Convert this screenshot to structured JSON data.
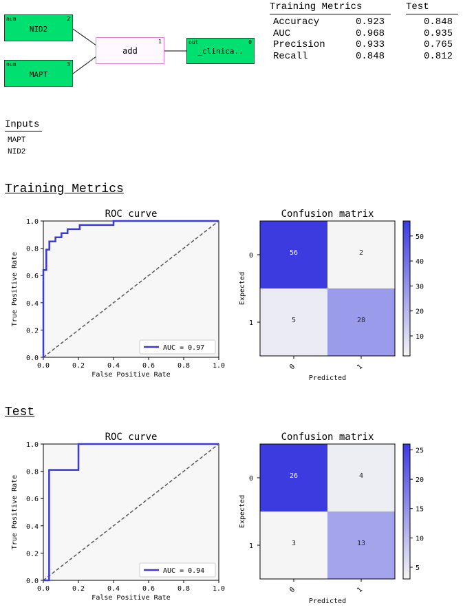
{
  "pipeline": {
    "input_nodes": [
      {
        "type": "num",
        "label": "NID2",
        "index": "2"
      },
      {
        "type": "num",
        "label": "MAPT",
        "index": "3"
      }
    ],
    "op_node": {
      "label": "add",
      "index": "1"
    },
    "output_node": {
      "type": "out",
      "label": "_clinica..",
      "index": "0"
    },
    "colors": {
      "input": "#00e070",
      "op_border": "#e080d0"
    }
  },
  "metrics_table": {
    "headers": [
      "Training Metrics",
      "Test"
    ],
    "rows": [
      {
        "name": "Accuracy",
        "train": "0.923",
        "test": "0.848"
      },
      {
        "name": "AUC",
        "train": "0.968",
        "test": "0.935"
      },
      {
        "name": "Precision",
        "train": "0.933",
        "test": "0.765"
      },
      {
        "name": "Recall",
        "train": "0.848",
        "test": "0.812"
      }
    ]
  },
  "inputs": {
    "title": "Inputs",
    "items": [
      "MAPT",
      "NID2"
    ]
  },
  "sections": {
    "training": "Training Metrics",
    "test": "Test"
  },
  "chart_data": [
    {
      "type": "line",
      "title": "ROC curve",
      "xlabel": "False Positive Rate",
      "ylabel": "True Positive Rate",
      "xlim": [
        0,
        1
      ],
      "ylim": [
        0,
        1
      ],
      "ticks": [
        "0.0",
        "0.2",
        "0.4",
        "0.6",
        "0.8",
        "1.0"
      ],
      "legend": "AUC = 0.97",
      "legend_position": "bottom-right",
      "series": [
        {
          "x": [
            0,
            0,
            0.017,
            0.017,
            0.034,
            0.034,
            0.069,
            0.069,
            0.103,
            0.103,
            0.138,
            0.138,
            0.207,
            0.207,
            0.4,
            0.4,
            1.0
          ],
          "y": [
            0,
            0.64,
            0.64,
            0.79,
            0.79,
            0.85,
            0.85,
            0.88,
            0.88,
            0.91,
            0.91,
            0.94,
            0.94,
            0.97,
            0.97,
            1.0,
            1.0
          ]
        }
      ],
      "diagonal": true,
      "colors": {
        "line": "#3a3adb",
        "diagonal": "#555555",
        "bg": "#f7f7f7"
      }
    },
    {
      "type": "heatmap",
      "title": "Confusion matrix",
      "xlabel": "Predicted",
      "ylabel": "Expected",
      "categories": [
        "0",
        "1"
      ],
      "values": [
        [
          56,
          2
        ],
        [
          5,
          28
        ]
      ],
      "colorbar_ticks": [
        "10",
        "20",
        "30",
        "40",
        "50"
      ],
      "colorbar_range": [
        2,
        56
      ]
    },
    {
      "type": "line",
      "title": "ROC curve",
      "xlabel": "False Positive Rate",
      "ylabel": "True Positive Rate",
      "xlim": [
        0,
        1
      ],
      "ylim": [
        0,
        1
      ],
      "ticks": [
        "0.0",
        "0.2",
        "0.4",
        "0.6",
        "0.8",
        "1.0"
      ],
      "legend": "AUC = 0.94",
      "legend_position": "bottom-right",
      "series": [
        {
          "x": [
            0,
            0.033,
            0.033,
            0.2,
            0.2,
            1.0
          ],
          "y": [
            0,
            0,
            0.81,
            0.81,
            1.0,
            1.0
          ]
        }
      ],
      "diagonal": true,
      "colors": {
        "line": "#3a3adb",
        "diagonal": "#555555",
        "bg": "#f7f7f7"
      }
    },
    {
      "type": "heatmap",
      "title": "Confusion matrix",
      "xlabel": "Predicted",
      "ylabel": "Expected",
      "categories": [
        "0",
        "1"
      ],
      "values": [
        [
          26,
          4
        ],
        [
          3,
          13
        ]
      ],
      "colorbar_ticks": [
        "5",
        "10",
        "15",
        "20",
        "25"
      ],
      "colorbar_range": [
        3,
        26
      ]
    }
  ]
}
